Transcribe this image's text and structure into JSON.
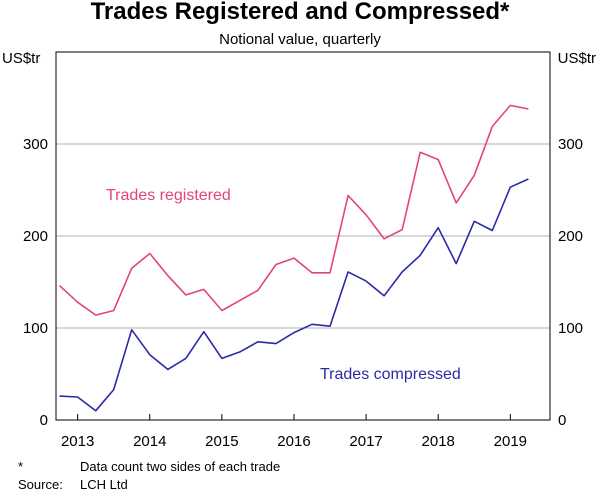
{
  "chart_data": {
    "type": "line",
    "title": "Trades Registered and Compressed*",
    "subtitle": "Notional value, quarterly",
    "y_unit_left": "US$tr",
    "y_unit_right": "US$tr",
    "ylim": [
      0,
      400
    ],
    "yticks": [
      0,
      100,
      200,
      300
    ],
    "xlim": [
      2012.7,
      2019.55
    ],
    "x_tick_labels": [
      {
        "label": "2013",
        "x": 2013.0
      },
      {
        "label": "2014",
        "x": 2014.0
      },
      {
        "label": "2015",
        "x": 2015.0
      },
      {
        "label": "2016",
        "x": 2016.0
      },
      {
        "label": "2017",
        "x": 2017.0
      },
      {
        "label": "2018",
        "x": 2018.0
      },
      {
        "label": "2019",
        "x": 2019.0
      }
    ],
    "grid": true,
    "series": [
      {
        "name": "Trades registered",
        "color": "#e0457b",
        "x": [
          2012.75,
          2013.0,
          2013.25,
          2013.5,
          2013.75,
          2014.0,
          2014.25,
          2014.5,
          2014.75,
          2015.0,
          2015.25,
          2015.5,
          2015.75,
          2016.0,
          2016.25,
          2016.5,
          2016.75,
          2017.0,
          2017.25,
          2017.5,
          2017.75,
          2018.0,
          2018.25,
          2018.5,
          2018.75,
          2019.0,
          2019.25
        ],
        "values": [
          146,
          128,
          114,
          119,
          165,
          181,
          157,
          136,
          142,
          119,
          130,
          141,
          169,
          176,
          160,
          160,
          244,
          223,
          197,
          207,
          291,
          283,
          236,
          266,
          319,
          342,
          338
        ]
      },
      {
        "name": "Trades compressed",
        "color": "#2a2aa8",
        "x": [
          2012.75,
          2013.0,
          2013.25,
          2013.5,
          2013.75,
          2014.0,
          2014.25,
          2014.5,
          2014.75,
          2015.0,
          2015.25,
          2015.5,
          2015.75,
          2016.0,
          2016.25,
          2016.5,
          2016.75,
          2017.0,
          2017.25,
          2017.5,
          2017.75,
          2018.0,
          2018.25,
          2018.5,
          2018.75,
          2019.0,
          2019.25
        ],
        "values": [
          26,
          25,
          10,
          33,
          98,
          71,
          55,
          67,
          96,
          67,
          74,
          85,
          83,
          95,
          104,
          102,
          161,
          151,
          135,
          161,
          179,
          209,
          170,
          216,
          206,
          253,
          262
        ]
      }
    ]
  },
  "footnotes": {
    "asterisk_key": "*",
    "asterisk_text": "Data count two sides of each trade",
    "source_key": "Source:",
    "source_text": "LCH Ltd"
  }
}
